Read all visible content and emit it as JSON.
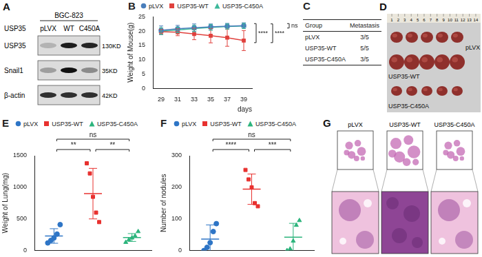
{
  "panels": {
    "western_blot": {
      "panel": "A",
      "cell_line": "BGC-823",
      "row_header": "USP35",
      "lanes": [
        "pLVX",
        "WT",
        "C450A"
      ],
      "bands": [
        {
          "name": "USP35",
          "size": "130KD",
          "intensity": [
            0.2,
            0.95,
            0.9
          ]
        },
        {
          "name": "Snail1",
          "size": "35KD",
          "intensity": [
            0.3,
            1,
            0.4
          ]
        },
        {
          "name": "β-actin",
          "size": "42KD",
          "intensity": [
            0.85,
            0.85,
            0.85
          ]
        }
      ]
    },
    "table": {
      "panel": "C",
      "header": [
        "Group",
        "Metastasis"
      ],
      "rows": [
        [
          "pLVX",
          "3/5"
        ],
        [
          "USP35-WT",
          "5/5"
        ],
        [
          "USP35-C450A",
          "3/5"
        ]
      ]
    },
    "photo": {
      "panel": "D",
      "ruler": [
        1,
        2,
        3,
        4,
        5,
        6,
        7,
        8,
        9,
        10,
        11,
        12,
        13,
        14
      ],
      "rows": [
        "pLVX",
        "USP35-WT",
        "USP35-C450A"
      ]
    },
    "histology": {
      "panel": "G",
      "columns": [
        "pLVX",
        "USP35-WT",
        "USP35-C450A"
      ]
    }
  },
  "chart_data": [
    {
      "panel": "B",
      "type": "line",
      "y_label": "Weight of Mouse(g)",
      "x_label": "days",
      "x": [
        29,
        31,
        33,
        35,
        37,
        39
      ],
      "xlim": [
        28,
        40
      ],
      "xticks": [
        29,
        31,
        33,
        35,
        37,
        39
      ],
      "ylim": [
        0,
        25
      ],
      "yticks": [
        0,
        5,
        10,
        15,
        20,
        25
      ],
      "grid": false,
      "legend": "top-left",
      "series": [
        {
          "name": "pLVX",
          "color": "#4a7ebb",
          "marker": "circle",
          "values": [
            20.3,
            20.8,
            21.2,
            21.5,
            21.7,
            21.9
          ],
          "errors": [
            1.5,
            1.2,
            1.3,
            1.0,
            1.0,
            1.0
          ]
        },
        {
          "name": "USP35-WT",
          "color": "#e0413d",
          "marker": "square",
          "values": [
            19.8,
            19.6,
            19.0,
            18.4,
            17.7,
            16.7
          ],
          "errors": [
            0.8,
            1.2,
            2.0,
            2.5,
            3.0,
            3.5
          ]
        },
        {
          "name": "USP35-C450A",
          "color": "#3cb89a",
          "marker": "triangle",
          "values": [
            20.0,
            20.4,
            20.9,
            21.3,
            21.6,
            21.8
          ],
          "errors": [
            1.2,
            1.0,
            1.1,
            1.0,
            0.9,
            0.9
          ]
        }
      ],
      "annotations": [
        {
          "text": "****",
          "between": [
            "pLVX",
            "USP35-WT"
          ]
        },
        {
          "text": "****",
          "between": [
            "USP35-WT",
            "USP35-C450A"
          ]
        },
        {
          "text": "ns",
          "between": [
            "pLVX",
            "USP35-C450A"
          ]
        }
      ]
    },
    {
      "panel": "E",
      "type": "scatter",
      "y_label": "Weight of Lung(mg)",
      "ylim": [
        0,
        1500
      ],
      "yticks": [
        0,
        500,
        1000,
        1500
      ],
      "grid": false,
      "legend": "top-left",
      "tick_labels": "y",
      "series": [
        {
          "name": "pLVX",
          "color": "#2e75c6",
          "marker": "circle",
          "values": [
            120,
            160,
            200,
            260,
            410
          ],
          "mean": 230,
          "sd": 115
        },
        {
          "name": "USP35-WT",
          "color": "#e8312f",
          "marker": "square",
          "values": [
            1380,
            1220,
            850,
            600,
            450
          ],
          "mean": 900,
          "sd": 400
        },
        {
          "name": "USP35-C450A",
          "color": "#2cb47c",
          "marker": "triangle",
          "values": [
            130,
            170,
            200,
            230,
            300
          ],
          "mean": 206,
          "sd": 62
        }
      ],
      "annotations": [
        {
          "text": "**",
          "between": [
            "pLVX",
            "USP35-WT"
          ]
        },
        {
          "text": "**",
          "between": [
            "USP35-WT",
            "USP35-C450A"
          ]
        },
        {
          "text": "ns",
          "between": [
            "pLVX",
            "USP35-C450A"
          ]
        }
      ]
    },
    {
      "panel": "F",
      "type": "scatter",
      "y_label": "Number of nodules",
      "ylim": [
        0,
        300
      ],
      "yticks": [
        0,
        100,
        200,
        300
      ],
      "grid": false,
      "legend": "top-left",
      "tick_labels": "y",
      "series": [
        {
          "name": "pLVX",
          "color": "#2e75c6",
          "marker": "circle",
          "values": [
            0,
            10,
            25,
            60,
            85
          ],
          "mean": 36,
          "sd": 45
        },
        {
          "name": "USP35-WT",
          "color": "#e8312f",
          "marker": "square",
          "values": [
            255,
            225,
            200,
            150,
            140
          ],
          "mean": 194,
          "sd": 48
        },
        {
          "name": "USP35-C450A",
          "color": "#2cb47c",
          "marker": "triangle",
          "values": [
            0,
            5,
            30,
            80,
            95
          ],
          "mean": 42,
          "sd": 44
        }
      ],
      "annotations": [
        {
          "text": "****",
          "between": [
            "pLVX",
            "USP35-WT"
          ]
        },
        {
          "text": "***",
          "between": [
            "USP35-WT",
            "USP35-C450A"
          ]
        },
        {
          "text": "ns",
          "between": [
            "pLVX",
            "USP35-C450A"
          ]
        }
      ]
    }
  ]
}
